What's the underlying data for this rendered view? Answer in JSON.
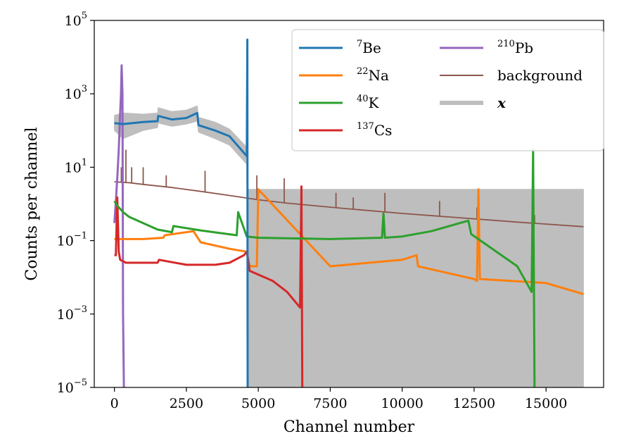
{
  "chart_data": {
    "type": "line",
    "title": "",
    "xlabel": "Channel number",
    "ylabel": "Counts per channel",
    "xlim": [
      -700,
      17000
    ],
    "ylim": [
      1e-05,
      100000.0
    ],
    "yscale": "log",
    "xticks": [
      {
        "value": 0,
        "label": "0"
      },
      {
        "value": 2500,
        "label": "2500"
      },
      {
        "value": 5000,
        "label": "5000"
      },
      {
        "value": 7500,
        "label": "7500"
      },
      {
        "value": 10000,
        "label": "10000"
      },
      {
        "value": 12500,
        "label": "12500"
      },
      {
        "value": 15000,
        "label": "15000"
      }
    ],
    "yticks": [
      {
        "value": 1e-05,
        "base": "10",
        "exp": "−5"
      },
      {
        "value": 0.001,
        "base": "10",
        "exp": "−3"
      },
      {
        "value": 0.1,
        "base": "10",
        "exp": "−1"
      },
      {
        "value": 10.0,
        "base": "10",
        "exp": "1"
      },
      {
        "value": 1000.0,
        "base": "10",
        "exp": "3"
      },
      {
        "value": 100000.0,
        "base": "10",
        "exp": "5"
      }
    ],
    "legend": {
      "position": "top-right",
      "columns": 2
    },
    "series": [
      {
        "name": "7Be",
        "sup": "7",
        "base": "Be",
        "color": "#1f77b4",
        "style": "line",
        "x": [
          0,
          300,
          1000,
          1500,
          1520,
          2000,
          2500,
          2880,
          2920,
          3500,
          4000,
          4600,
          4620,
          4630
        ],
        "y": [
          160,
          150,
          170,
          180,
          250,
          200,
          220,
          300,
          140,
          100,
          70,
          20,
          30000,
          1e-05
        ]
      },
      {
        "name": "22Na",
        "sup": "22",
        "base": "Na",
        "color": "#ff7f0e",
        "style": "line",
        "x": [
          0,
          1000,
          1700,
          1750,
          2500,
          2750,
          3000,
          4000,
          4600,
          4700,
          4950,
          5000,
          7500,
          10000,
          10500,
          10550,
          12500,
          12600,
          12650,
          12700,
          15000,
          16300
        ],
        "y": [
          0.11,
          0.11,
          0.12,
          0.14,
          0.17,
          0.18,
          0.09,
          0.06,
          0.05,
          0.02,
          0.02,
          2.5,
          0.02,
          0.03,
          0.04,
          0.02,
          0.009,
          0.008,
          2.5,
          0.009,
          0.007,
          0.0035
        ]
      },
      {
        "name": "40K",
        "sup": "40",
        "base": "K",
        "color": "#2ca02c",
        "style": "line",
        "x": [
          0,
          100,
          300,
          500,
          1000,
          1500,
          2000,
          2050,
          3000,
          4250,
          4300,
          4600,
          5000,
          7500,
          9300,
          9350,
          9400,
          10000,
          11000,
          12000,
          12300,
          12400,
          14000,
          14500,
          14550,
          14600
        ],
        "y": [
          1.2,
          0.9,
          0.6,
          0.45,
          0.3,
          0.2,
          0.17,
          0.25,
          0.19,
          0.14,
          0.6,
          0.13,
          0.12,
          0.11,
          0.12,
          0.55,
          0.12,
          0.13,
          0.18,
          0.3,
          0.35,
          0.15,
          0.02,
          0.004,
          30,
          1e-05
        ]
      },
      {
        "name": "137Cs",
        "sup": "137",
        "base": "Cs",
        "color": "#d62728",
        "style": "line",
        "x": [
          0,
          50,
          100,
          150,
          200,
          400,
          1000,
          1500,
          1550,
          2500,
          3500,
          4000,
          4500,
          4600,
          4700,
          5500,
          6000,
          6450,
          6500,
          6530
        ],
        "y": [
          0.04,
          0.04,
          1.5,
          0.05,
          0.03,
          0.025,
          0.025,
          0.025,
          0.03,
          0.022,
          0.022,
          0.025,
          0.04,
          0.05,
          0.015,
          0.008,
          0.004,
          0.0015,
          3,
          1e-05
        ]
      },
      {
        "name": "210Pb",
        "sup": "210",
        "base": "Pb",
        "color": "#9467bd",
        "style": "line",
        "x": [
          0,
          50,
          100,
          150,
          200,
          230,
          250,
          280,
          300,
          330
        ],
        "y": [
          0.3,
          1.2,
          5,
          30,
          300,
          1000,
          6000,
          1000,
          0.001,
          1e-05
        ]
      },
      {
        "name": "background",
        "sup": "",
        "base": "background",
        "color": "#8c564b",
        "style": "line",
        "x": [
          0,
          500,
          1000,
          2000,
          3000,
          4000,
          5000,
          6000,
          8000,
          10000,
          12000,
          14000,
          16300
        ],
        "y": [
          4,
          3.8,
          3.4,
          2.8,
          2.2,
          1.7,
          1.3,
          1.05,
          0.75,
          0.55,
          0.42,
          0.32,
          0.24
        ],
        "spikes": [
          {
            "x": 100,
            "y": 6
          },
          {
            "x": 240,
            "y": 10
          },
          {
            "x": 400,
            "y": 30
          },
          {
            "x": 600,
            "y": 10
          },
          {
            "x": 1000,
            "y": 10
          },
          {
            "x": 1800,
            "y": 6
          },
          {
            "x": 3150,
            "y": 8
          },
          {
            "x": 4950,
            "y": 6
          },
          {
            "x": 5900,
            "y": 5
          },
          {
            "x": 7700,
            "y": 2
          },
          {
            "x": 8300,
            "y": 1.5
          },
          {
            "x": 9400,
            "y": 2
          },
          {
            "x": 11300,
            "y": 1.2
          },
          {
            "x": 12600,
            "y": 0.8
          },
          {
            "x": 14600,
            "y": 0.5
          }
        ]
      },
      {
        "name": "x",
        "sup": "",
        "base": "x",
        "color": "#bebebe",
        "style": "band",
        "x": [
          0,
          300,
          1000,
          1500,
          1520,
          2000,
          2500,
          2880,
          2920,
          3500,
          4000,
          4600,
          4650,
          16300
        ],
        "y_low": [
          100,
          60,
          100,
          120,
          160,
          130,
          150,
          180,
          90,
          60,
          40,
          12,
          1e-05,
          1e-05
        ],
        "y_high": [
          260,
          300,
          280,
          300,
          420,
          330,
          360,
          470,
          230,
          170,
          110,
          35,
          2.5,
          2.5
        ]
      }
    ]
  }
}
